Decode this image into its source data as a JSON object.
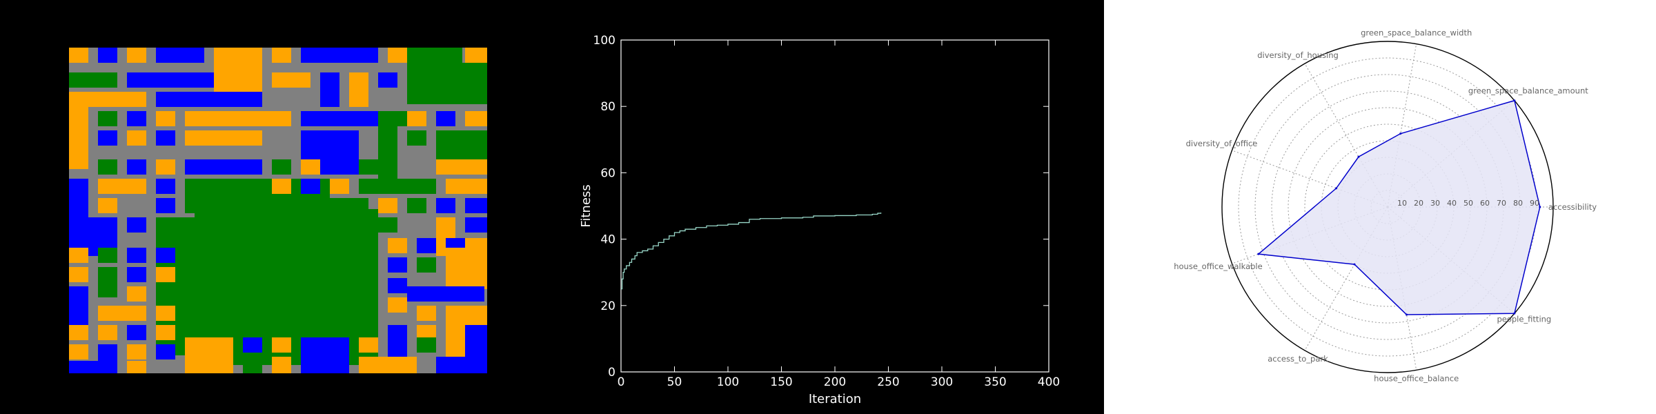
{
  "colors": {
    "road": "#808080",
    "housing": "#ffa500",
    "office": "#0000ff",
    "green": "#008000",
    "fitness_line": "#99d8c9",
    "radar_line": "#0000cc",
    "radar_fill": "#e4e4f6"
  },
  "grid_map": {
    "rows": [
      "ObOOObOOOOOObObOOOOOObOOOObOOOOOOOOOOOOObOOOOOOOOO",
      "OOOOOOOOOOOOOOOOOOOOOOOOOOOOOOOOOOOOOOOOOOOOOOOOOO",
      "OOOOOObOOOObOObOOOOOOOOOOOObOOOOOOOObOOOOOOOOOOOOO",
      "ObbbbbbbbbbbbbbOOOOOOOObbbbbbbbOOOObbbbbbbbbOOOOOO"
    ]
  },
  "chart_data": [
    {
      "type": "grid",
      "legend": {
        "1": "housing",
        "2": "office",
        "3": "green",
        "0": "road"
      },
      "rows": [
        "0101011000222200000220000000000000000000000022202220",
        "0101011000222200000220000000000000000000000022202220"
      ]
    },
    {
      "type": "line",
      "xlabel": "Iteration",
      "ylabel": "Fitness",
      "xlim": [
        0,
        400
      ],
      "ylim": [
        0,
        100
      ],
      "xticks": [
        0,
        50,
        100,
        150,
        200,
        250,
        300,
        350,
        400
      ],
      "yticks": [
        0,
        20,
        40,
        60,
        80,
        100
      ],
      "x": [
        0,
        1,
        2,
        3,
        5,
        8,
        10,
        13,
        15,
        20,
        25,
        30,
        35,
        40,
        45,
        50,
        55,
        60,
        70,
        80,
        90,
        100,
        110,
        120,
        130,
        150,
        170,
        180,
        200,
        220,
        235,
        240,
        243
      ],
      "y": [
        25,
        28,
        30,
        31,
        32,
        33,
        34,
        35,
        36,
        36.5,
        37,
        38,
        39,
        40,
        41,
        42,
        42.5,
        43,
        43.5,
        44,
        44.2,
        44.5,
        45,
        46,
        46.2,
        46.4,
        46.6,
        47,
        47.1,
        47.3,
        47.5,
        47.8,
        48
      ]
    },
    {
      "type": "radar",
      "axes": [
        "accessibility",
        "green_space_balance_amount",
        "green_space_balance_width",
        "diversity_of_housing",
        "diversity_of_office",
        "house_office_walkable",
        "access_to_park",
        "house_office_balance",
        "people_fitting"
      ],
      "rticks": [
        10,
        20,
        30,
        40,
        50,
        60,
        70,
        80,
        90
      ],
      "rlim": [
        0,
        100
      ],
      "values": [
        92,
        100,
        45,
        35,
        33,
        83,
        40,
        66,
        100
      ]
    }
  ]
}
